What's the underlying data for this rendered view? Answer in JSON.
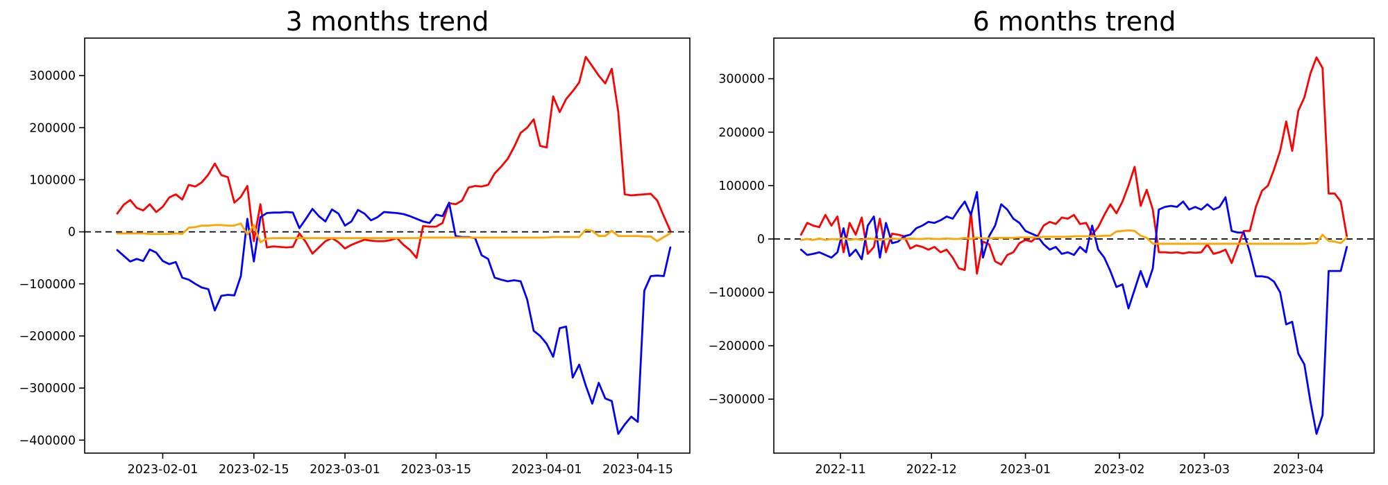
{
  "page": {
    "background": "#ffffff"
  },
  "chart_data": [
    {
      "type": "line",
      "title": "3 months trend",
      "xlabel": "",
      "ylabel": "",
      "grid": false,
      "legend": null,
      "xlim": [
        "2023-01-20",
        "2023-04-23"
      ],
      "ylim": [
        -425000,
        372000
      ],
      "zero_line": {
        "value": 0,
        "style": "dashed",
        "color": "#000000"
      },
      "x_ticks": [
        {
          "date": "2023-02-01",
          "label": "2023-02-01"
        },
        {
          "date": "2023-02-15",
          "label": "2023-02-15"
        },
        {
          "date": "2023-03-01",
          "label": "2023-03-01"
        },
        {
          "date": "2023-03-15",
          "label": "2023-03-15"
        },
        {
          "date": "2023-04-01",
          "label": "2023-04-01"
        },
        {
          "date": "2023-04-15",
          "label": "2023-04-15"
        }
      ],
      "y_ticks": [
        {
          "value": 300000,
          "label": "300000"
        },
        {
          "value": 200000,
          "label": "200000"
        },
        {
          "value": 100000,
          "label": "100000"
        },
        {
          "value": 0,
          "label": "0"
        },
        {
          "value": -100000,
          "label": "−100000"
        },
        {
          "value": -200000,
          "label": "−200000"
        },
        {
          "value": -300000,
          "label": "−300000"
        },
        {
          "value": -400000,
          "label": "−400000"
        }
      ],
      "series": [
        {
          "name": "red",
          "color": "#ff0000",
          "start_date": "2023-01-25",
          "step_days": 1,
          "values": [
            35000,
            52000,
            61000,
            46000,
            41000,
            53000,
            38000,
            48000,
            66000,
            72000,
            62000,
            90000,
            87000,
            95000,
            110000,
            131000,
            109000,
            105000,
            56000,
            67000,
            88000,
            -18000,
            53000,
            -30000,
            -28000,
            -29000,
            -30000,
            -29000,
            -3000,
            -20000,
            -42000,
            -30000,
            -18000,
            -12000,
            -20000,
            -32000,
            -25000,
            -20000,
            -15000,
            -17000,
            -18000,
            -18000,
            -16000,
            -12000,
            -25000,
            -35000,
            -50000,
            11000,
            10000,
            10000,
            17000,
            55000,
            53000,
            60000,
            85000,
            88000,
            87000,
            90000,
            112000,
            125000,
            140000,
            163000,
            190000,
            200000,
            216000,
            165000,
            162000,
            260000,
            230000,
            255000,
            270000,
            287000,
            336000,
            318000,
            300000,
            285000,
            313000,
            230000,
            72000,
            70000,
            71000,
            72000,
            73000,
            60000,
            30000,
            2000
          ]
        },
        {
          "name": "blue",
          "color": "#0000ff",
          "start_date": "2023-01-25",
          "step_days": 1,
          "values": [
            -35000,
            -46000,
            -57000,
            -52000,
            -56000,
            -34000,
            -40000,
            -56000,
            -62000,
            -58000,
            -88000,
            -92000,
            -100000,
            -107000,
            -110000,
            -151000,
            -123000,
            -121000,
            -122000,
            -85000,
            25000,
            -57000,
            28000,
            36000,
            37000,
            37000,
            38000,
            37000,
            7000,
            25000,
            44000,
            30000,
            20000,
            43000,
            35000,
            12000,
            20000,
            42000,
            35000,
            22000,
            28000,
            38000,
            37000,
            36000,
            34000,
            30000,
            25000,
            20000,
            17000,
            33000,
            30000,
            56000,
            -8000,
            -10000,
            -10000,
            -12000,
            -45000,
            -52000,
            -88000,
            -92000,
            -95000,
            -93000,
            -95000,
            -130000,
            -190000,
            -200000,
            -215000,
            -240000,
            -185000,
            -182000,
            -280000,
            -255000,
            -295000,
            -330000,
            -290000,
            -320000,
            -325000,
            -388000,
            -370000,
            -355000,
            -365000,
            -113000,
            -85000,
            -84000,
            -85000,
            -30000
          ]
        },
        {
          "name": "orange",
          "color": "#ffa500",
          "start_date": "2023-01-25",
          "step_days": 1,
          "values": [
            -3000,
            -3000,
            -3000,
            -3000,
            -3000,
            -4000,
            -4000,
            -4000,
            -4000,
            -3000,
            -4000,
            8000,
            9000,
            12000,
            12000,
            13000,
            13000,
            12000,
            12000,
            16000,
            -5000,
            13000,
            -20000,
            -13000,
            -12000,
            -12000,
            -12000,
            -12000,
            -12000,
            -12000,
            -12000,
            -12000,
            -12000,
            -12000,
            -12000,
            -12000,
            -12000,
            -12000,
            -12000,
            -12000,
            -12000,
            -12000,
            -12000,
            -12000,
            -12000,
            -12000,
            -12000,
            -11000,
            -11000,
            -11000,
            -11000,
            -11000,
            -11000,
            -11000,
            -11000,
            -11000,
            -11000,
            -11000,
            -11000,
            -11000,
            -11000,
            -11000,
            -11000,
            -11000,
            -11000,
            -11000,
            -11000,
            -10000,
            -10000,
            -10000,
            -10000,
            -10000,
            4000,
            2000,
            -8000,
            -8000,
            2000,
            -8000,
            -8000,
            -8000,
            -8000,
            -9000,
            -9000,
            -18000,
            -10000,
            -3000
          ]
        }
      ]
    },
    {
      "type": "line",
      "title": "6 months trend",
      "xlabel": "",
      "ylabel": "",
      "grid": false,
      "legend": null,
      "xlim": [
        "2022-10-10",
        "2023-04-26"
      ],
      "ylim": [
        -401000,
        376000
      ],
      "zero_line": {
        "value": 0,
        "style": "dashed",
        "color": "#000000"
      },
      "x_ticks": [
        {
          "date": "2022-11-01",
          "label": "2022-11"
        },
        {
          "date": "2022-12-01",
          "label": "2022-12"
        },
        {
          "date": "2023-01-01",
          "label": "2023-01"
        },
        {
          "date": "2023-02-01",
          "label": "2023-02"
        },
        {
          "date": "2023-03-01",
          "label": "2023-03"
        },
        {
          "date": "2023-04-01",
          "label": "2023-04"
        }
      ],
      "y_ticks": [
        {
          "value": 300000,
          "label": "300000"
        },
        {
          "value": 200000,
          "label": "200000"
        },
        {
          "value": 100000,
          "label": "100000"
        },
        {
          "value": 0,
          "label": "0"
        },
        {
          "value": -100000,
          "label": "−100000"
        },
        {
          "value": -200000,
          "label": "−200000"
        },
        {
          "value": -300000,
          "label": "−300000"
        }
      ],
      "series": [
        {
          "name": "red",
          "color": "#ff0000",
          "start_date": "2022-10-19",
          "step_days": 2,
          "values": [
            8000,
            30000,
            25000,
            22000,
            45000,
            25000,
            42000,
            -25000,
            30000,
            8000,
            40000,
            -28000,
            -15000,
            38000,
            -25000,
            10000,
            8000,
            5000,
            -18000,
            -12000,
            -15000,
            -20000,
            -15000,
            -25000,
            -20000,
            -35000,
            -55000,
            -58000,
            50000,
            -65000,
            -5000,
            -10000,
            -42000,
            -48000,
            -30000,
            -25000,
            -8000,
            -2000,
            -5000,
            5000,
            25000,
            32000,
            28000,
            40000,
            38000,
            45000,
            28000,
            30000,
            8000,
            22000,
            45000,
            65000,
            48000,
            70000,
            100000,
            135000,
            62000,
            92000,
            55000,
            -25000,
            -25000,
            -26000,
            -25000,
            -27000,
            -25000,
            -26000,
            -25000,
            -10000,
            -28000,
            -25000,
            -20000,
            -45000,
            -15000,
            15000,
            15000,
            60000,
            90000,
            100000,
            130000,
            165000,
            220000,
            165000,
            240000,
            265000,
            310000,
            340000,
            320000,
            85000,
            85000,
            70000,
            5000
          ]
        },
        {
          "name": "blue",
          "color": "#0000ff",
          "start_date": "2022-10-19",
          "step_days": 2,
          "values": [
            -20000,
            -30000,
            -28000,
            -25000,
            -30000,
            -35000,
            -25000,
            20000,
            -32000,
            -20000,
            -38000,
            25000,
            42000,
            -35000,
            30000,
            -8000,
            -5000,
            5000,
            8000,
            20000,
            25000,
            32000,
            30000,
            35000,
            42000,
            38000,
            55000,
            70000,
            45000,
            88000,
            -35000,
            5000,
            25000,
            65000,
            55000,
            38000,
            30000,
            15000,
            10000,
            5000,
            -10000,
            -20000,
            -15000,
            -28000,
            -25000,
            -30000,
            -15000,
            -25000,
            25000,
            -20000,
            -35000,
            -60000,
            -90000,
            -85000,
            -130000,
            -95000,
            -60000,
            -90000,
            -55000,
            55000,
            60000,
            62000,
            60000,
            70000,
            55000,
            60000,
            55000,
            65000,
            55000,
            60000,
            78000,
            15000,
            12000,
            12000,
            -25000,
            -70000,
            -70000,
            -72000,
            -80000,
            -100000,
            -160000,
            -155000,
            -215000,
            -235000,
            -305000,
            -365000,
            -330000,
            -60000,
            -60000,
            -60000,
            -15000
          ]
        },
        {
          "name": "orange",
          "color": "#ffa500",
          "start_date": "2022-10-19",
          "step_days": 2,
          "values": [
            -2000,
            0,
            -2000,
            1000,
            -2000,
            0,
            -1000,
            2000,
            -2000,
            0,
            -2000,
            1000,
            0,
            -2000,
            0,
            1000,
            0,
            0,
            1000,
            0,
            0,
            1000,
            0,
            0,
            1000,
            0,
            0,
            2000,
            0,
            3000,
            1000,
            1000,
            2000,
            2000,
            2000,
            2000,
            3000,
            3000,
            3000,
            3000,
            4000,
            4000,
            4000,
            4000,
            4000,
            5000,
            5000,
            5000,
            5000,
            5000,
            6000,
            6000,
            14000,
            15000,
            16000,
            15000,
            6000,
            2000,
            -9000,
            -9000,
            -9000,
            -9000,
            -9000,
            -9000,
            -9000,
            -9000,
            -9000,
            -9000,
            -9000,
            -9000,
            -9000,
            -9000,
            -9000,
            -9000,
            -9000,
            -9000,
            -9000,
            -9000,
            -9000,
            -9000,
            -9000,
            -9000,
            -9000,
            -9000,
            -8000,
            -8000,
            8000,
            -4000,
            -5000,
            -8000,
            3000
          ]
        }
      ]
    }
  ]
}
